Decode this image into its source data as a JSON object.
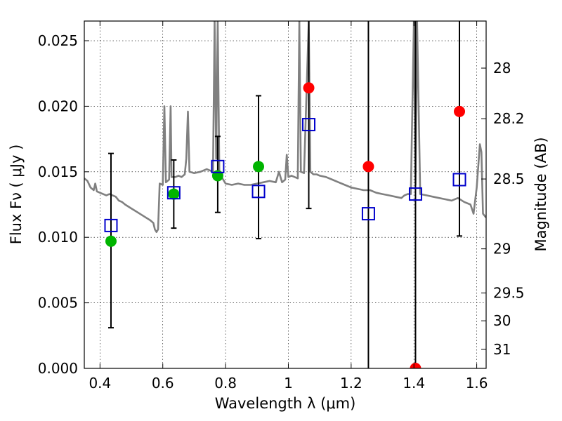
{
  "chart_data": {
    "type": "scatter",
    "title": "",
    "xlabel": "Wavelength  λ (μm)",
    "ylabel": "Flux  Fν  ( μJy )",
    "ylabel_right": "Magnitude (AB)",
    "xlim": [
      0.35,
      1.63
    ],
    "ylim": [
      0.0,
      0.0265
    ],
    "grid": true,
    "x_ticks": [
      0.4,
      0.6,
      0.8,
      1.0,
      1.2,
      1.4,
      1.6
    ],
    "x_tick_labels": [
      "0.4",
      "0.6",
      "0.8",
      "1",
      "1.2",
      "1.4",
      "1.6"
    ],
    "y_ticks": [
      0.0,
      0.005,
      0.01,
      0.015,
      0.02,
      0.025
    ],
    "y_tick_labels": [
      "0.000",
      "0.005",
      "0.010",
      "0.015",
      "0.020",
      "0.025"
    ],
    "right_ticks": [
      {
        "label": "28",
        "flux": 0.02291
      },
      {
        "label": "28.2",
        "flux": 0.01905
      },
      {
        "label": "28.5",
        "flux": 0.01445
      },
      {
        "label": "29",
        "flux": 0.00912
      },
      {
        "label": "29.5",
        "flux": 0.00575
      },
      {
        "label": "30",
        "flux": 0.00363
      },
      {
        "label": "31",
        "flux": 0.00145
      }
    ],
    "colors": {
      "model": "#808080",
      "detected": "#00b400",
      "upper_limit": "#ff0000",
      "model_band": "#0000cc",
      "errorbar": "#000000"
    },
    "series": [
      {
        "kind": "errorbar",
        "points": [
          {
            "x": 0.435,
            "y": 0.0097,
            "low": 0.0031,
            "high": 0.0164
          },
          {
            "x": 0.635,
            "y": 0.0133,
            "low": 0.0107,
            "high": 0.0159
          },
          {
            "x": 0.775,
            "y": 0.0147,
            "low": 0.0119,
            "high": 0.0177
          },
          {
            "x": 0.905,
            "y": 0.0154,
            "low": 0.0099,
            "high": 0.0208
          },
          {
            "x": 1.065,
            "y": 0.0214,
            "low": 0.0122,
            "high": 0.0265
          },
          {
            "x": 1.255,
            "y": 0.0154,
            "low": 0.0,
            "high": 0.0265
          },
          {
            "x": 1.405,
            "y": 0.0,
            "low": 0.0,
            "high": 0.0265
          },
          {
            "x": 1.545,
            "y": 0.0196,
            "low": 0.0101,
            "high": 0.0265
          }
        ]
      },
      {
        "kind": "detected",
        "points": [
          {
            "x": 0.435,
            "y": 0.0097
          },
          {
            "x": 0.635,
            "y": 0.0133
          },
          {
            "x": 0.775,
            "y": 0.0147
          },
          {
            "x": 0.905,
            "y": 0.0154
          }
        ]
      },
      {
        "kind": "upper_limit",
        "points": [
          {
            "x": 1.065,
            "y": 0.0214
          },
          {
            "x": 1.255,
            "y": 0.0154
          },
          {
            "x": 1.405,
            "y": 0.0
          },
          {
            "x": 1.545,
            "y": 0.0196
          }
        ]
      },
      {
        "kind": "model_band",
        "points": [
          {
            "x": 0.435,
            "y": 0.0109
          },
          {
            "x": 0.635,
            "y": 0.0134
          },
          {
            "x": 0.775,
            "y": 0.0154
          },
          {
            "x": 0.905,
            "y": 0.0135
          },
          {
            "x": 1.065,
            "y": 0.0186
          },
          {
            "x": 1.255,
            "y": 0.0118
          },
          {
            "x": 1.405,
            "y": 0.0133
          },
          {
            "x": 1.545,
            "y": 0.0144
          }
        ]
      },
      {
        "kind": "model_spectrum",
        "points": [
          [
            0.35,
            0.0145
          ],
          [
            0.36,
            0.0143
          ],
          [
            0.37,
            0.0138
          ],
          [
            0.38,
            0.0136
          ],
          [
            0.385,
            0.0141
          ],
          [
            0.39,
            0.0135
          ],
          [
            0.4,
            0.0134
          ],
          [
            0.41,
            0.0133
          ],
          [
            0.42,
            0.0132
          ],
          [
            0.43,
            0.0133
          ],
          [
            0.44,
            0.0132
          ],
          [
            0.45,
            0.0131
          ],
          [
            0.46,
            0.0128
          ],
          [
            0.47,
            0.0127
          ],
          [
            0.48,
            0.0125
          ],
          [
            0.5,
            0.0122
          ],
          [
            0.52,
            0.0119
          ],
          [
            0.54,
            0.0116
          ],
          [
            0.56,
            0.0113
          ],
          [
            0.57,
            0.0111
          ],
          [
            0.575,
            0.0106
          ],
          [
            0.58,
            0.0104
          ],
          [
            0.585,
            0.0106
          ],
          [
            0.59,
            0.0141
          ],
          [
            0.6,
            0.014
          ],
          [
            0.605,
            0.02
          ],
          [
            0.61,
            0.0142
          ],
          [
            0.62,
            0.0144
          ],
          [
            0.625,
            0.02
          ],
          [
            0.628,
            0.0146
          ],
          [
            0.64,
            0.0146
          ],
          [
            0.65,
            0.0147
          ],
          [
            0.66,
            0.0146
          ],
          [
            0.67,
            0.0148
          ],
          [
            0.675,
            0.016
          ],
          [
            0.68,
            0.0196
          ],
          [
            0.685,
            0.015
          ],
          [
            0.7,
            0.0149
          ],
          [
            0.72,
            0.015
          ],
          [
            0.73,
            0.0151
          ],
          [
            0.74,
            0.0152
          ],
          [
            0.75,
            0.0151
          ],
          [
            0.76,
            0.015
          ],
          [
            0.765,
            0.0265
          ],
          [
            0.77,
            0.016
          ],
          [
            0.775,
            0.0265
          ],
          [
            0.78,
            0.015
          ],
          [
            0.79,
            0.0145
          ],
          [
            0.8,
            0.0141
          ],
          [
            0.82,
            0.014
          ],
          [
            0.84,
            0.0141
          ],
          [
            0.86,
            0.014
          ],
          [
            0.88,
            0.014
          ],
          [
            0.9,
            0.0141
          ],
          [
            0.92,
            0.0142
          ],
          [
            0.94,
            0.0143
          ],
          [
            0.96,
            0.0142
          ],
          [
            0.97,
            0.015
          ],
          [
            0.98,
            0.0142
          ],
          [
            0.99,
            0.0144
          ],
          [
            0.995,
            0.0163
          ],
          [
            1.0,
            0.0146
          ],
          [
            1.01,
            0.0147
          ],
          [
            1.02,
            0.0146
          ],
          [
            1.03,
            0.0145
          ],
          [
            1.035,
            0.0265
          ],
          [
            1.04,
            0.015
          ],
          [
            1.05,
            0.0149
          ],
          [
            1.065,
            0.0265
          ],
          [
            1.07,
            0.015
          ],
          [
            1.08,
            0.0148
          ],
          [
            1.09,
            0.0148
          ],
          [
            1.1,
            0.0147
          ],
          [
            1.12,
            0.0146
          ],
          [
            1.14,
            0.0144
          ],
          [
            1.16,
            0.0142
          ],
          [
            1.18,
            0.014
          ],
          [
            1.2,
            0.0138
          ],
          [
            1.22,
            0.0137
          ],
          [
            1.24,
            0.0136
          ],
          [
            1.26,
            0.0136
          ],
          [
            1.28,
            0.0134
          ],
          [
            1.3,
            0.0133
          ],
          [
            1.32,
            0.0132
          ],
          [
            1.34,
            0.0131
          ],
          [
            1.36,
            0.013
          ],
          [
            1.37,
            0.0132
          ],
          [
            1.38,
            0.0133
          ],
          [
            1.39,
            0.0133
          ],
          [
            1.4,
            0.0265
          ],
          [
            1.405,
            0.014
          ],
          [
            1.41,
            0.0265
          ],
          [
            1.42,
            0.0133
          ],
          [
            1.44,
            0.0132
          ],
          [
            1.46,
            0.0131
          ],
          [
            1.48,
            0.013
          ],
          [
            1.5,
            0.0129
          ],
          [
            1.52,
            0.0128
          ],
          [
            1.54,
            0.013
          ],
          [
            1.56,
            0.0127
          ],
          [
            1.58,
            0.0125
          ],
          [
            1.59,
            0.0118
          ],
          [
            1.6,
            0.0138
          ],
          [
            1.61,
            0.0171
          ],
          [
            1.615,
            0.0165
          ],
          [
            1.62,
            0.0118
          ],
          [
            1.63,
            0.0115
          ]
        ]
      }
    ]
  }
}
